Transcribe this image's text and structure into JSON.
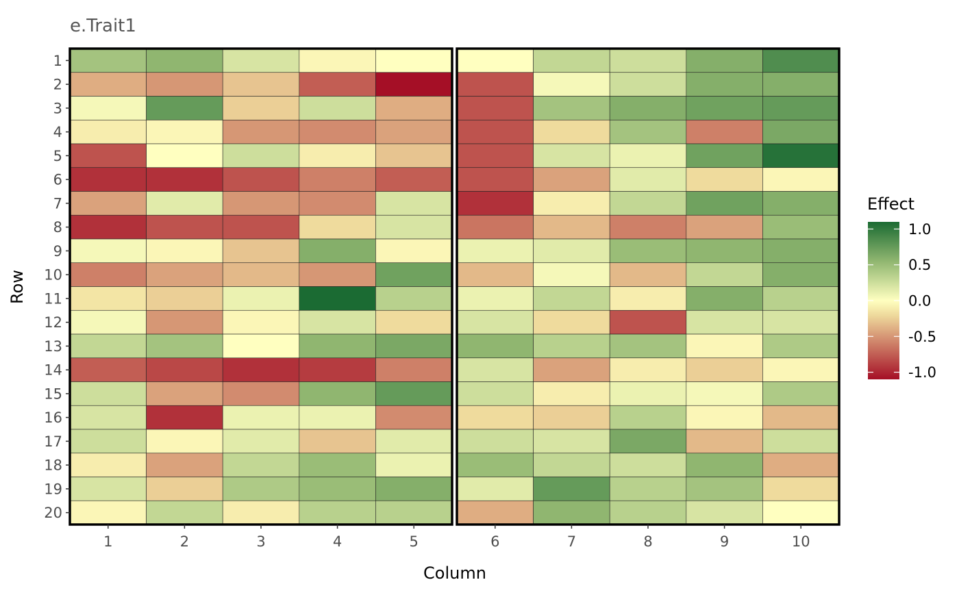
{
  "chart_data": {
    "type": "heatmap",
    "title": "e.Trait1",
    "xlabel": "Column",
    "ylabel": "Row",
    "columns": [
      "1",
      "2",
      "3",
      "4",
      "5",
      "6",
      "7",
      "8",
      "9",
      "10"
    ],
    "rows": [
      "1",
      "2",
      "3",
      "4",
      "5",
      "6",
      "7",
      "8",
      "9",
      "10",
      "11",
      "12",
      "13",
      "14",
      "15",
      "16",
      "17",
      "18",
      "19",
      "20"
    ],
    "column_groups": [
      [
        "1",
        "2",
        "3",
        "4",
        "5"
      ],
      [
        "6",
        "7",
        "8",
        "9",
        "10"
      ]
    ],
    "legend": {
      "title": "Effect",
      "placement": "right",
      "range": [
        -1.1,
        1.1
      ],
      "ticks": [
        1.0,
        0.5,
        0.0,
        -0.5,
        -1.0
      ],
      "tick_labels": [
        "1.0",
        "0.5",
        "0.0",
        "-0.5",
        "-1.0"
      ],
      "colors": [
        "#a50f26",
        "#f1e0a0",
        "#ffffc0",
        "#90b670",
        "#1b6b33"
      ]
    },
    "values": [
      [
        0.45,
        0.55,
        0.2,
        -0.05,
        0.0,
        0.0,
        0.3,
        0.25,
        0.6,
        0.85
      ],
      [
        -0.4,
        -0.5,
        -0.3,
        -0.75,
        -1.1,
        -0.8,
        0.05,
        0.25,
        0.6,
        0.6
      ],
      [
        0.05,
        0.75,
        -0.25,
        0.25,
        -0.4,
        -0.8,
        0.45,
        0.6,
        0.7,
        0.75
      ],
      [
        -0.1,
        -0.05,
        -0.5,
        -0.55,
        -0.45,
        -0.8,
        -0.2,
        0.45,
        -0.6,
        0.65
      ],
      [
        -0.8,
        0.0,
        0.25,
        -0.1,
        -0.3,
        -0.8,
        0.2,
        0.1,
        0.7,
        1.05
      ],
      [
        -0.95,
        -0.95,
        -0.8,
        -0.6,
        -0.75,
        -0.8,
        -0.45,
        0.15,
        -0.2,
        -0.05
      ],
      [
        -0.45,
        0.15,
        -0.5,
        -0.55,
        0.2,
        -0.95,
        -0.1,
        0.3,
        0.7,
        0.6
      ],
      [
        -0.95,
        -0.8,
        -0.8,
        -0.2,
        0.2,
        -0.65,
        -0.35,
        -0.6,
        -0.45,
        0.5
      ],
      [
        0.05,
        -0.05,
        -0.3,
        0.6,
        -0.05,
        0.1,
        0.15,
        0.5,
        0.55,
        0.6
      ],
      [
        -0.6,
        -0.45,
        -0.35,
        -0.5,
        0.7,
        -0.35,
        0.05,
        -0.35,
        0.3,
        0.6
      ],
      [
        -0.15,
        -0.25,
        0.1,
        1.1,
        0.35,
        0.1,
        0.3,
        -0.1,
        0.6,
        0.35
      ],
      [
        0.05,
        -0.5,
        -0.05,
        0.2,
        -0.2,
        0.2,
        -0.2,
        -0.8,
        0.2,
        0.2
      ],
      [
        0.3,
        0.45,
        0.0,
        0.55,
        0.65,
        0.55,
        0.35,
        0.45,
        -0.05,
        0.4
      ],
      [
        -0.75,
        -0.85,
        -0.95,
        -0.9,
        -0.6,
        0.2,
        -0.45,
        -0.1,
        -0.25,
        -0.05
      ],
      [
        0.25,
        -0.45,
        -0.55,
        0.55,
        0.75,
        0.25,
        -0.1,
        0.1,
        0.05,
        0.4
      ],
      [
        0.2,
        -0.95,
        0.1,
        0.1,
        -0.55,
        -0.2,
        -0.25,
        0.35,
        -0.05,
        -0.35
      ],
      [
        0.25,
        -0.05,
        0.15,
        -0.3,
        0.15,
        0.25,
        0.2,
        0.65,
        -0.35,
        0.25
      ],
      [
        -0.1,
        -0.45,
        0.3,
        0.5,
        0.1,
        0.5,
        0.3,
        0.25,
        0.55,
        -0.4
      ],
      [
        0.2,
        -0.25,
        0.4,
        0.5,
        0.6,
        0.15,
        0.75,
        0.35,
        0.45,
        -0.2
      ],
      [
        -0.05,
        0.3,
        -0.1,
        0.35,
        0.35,
        -0.4,
        0.55,
        0.35,
        0.2,
        0.0
      ]
    ]
  }
}
